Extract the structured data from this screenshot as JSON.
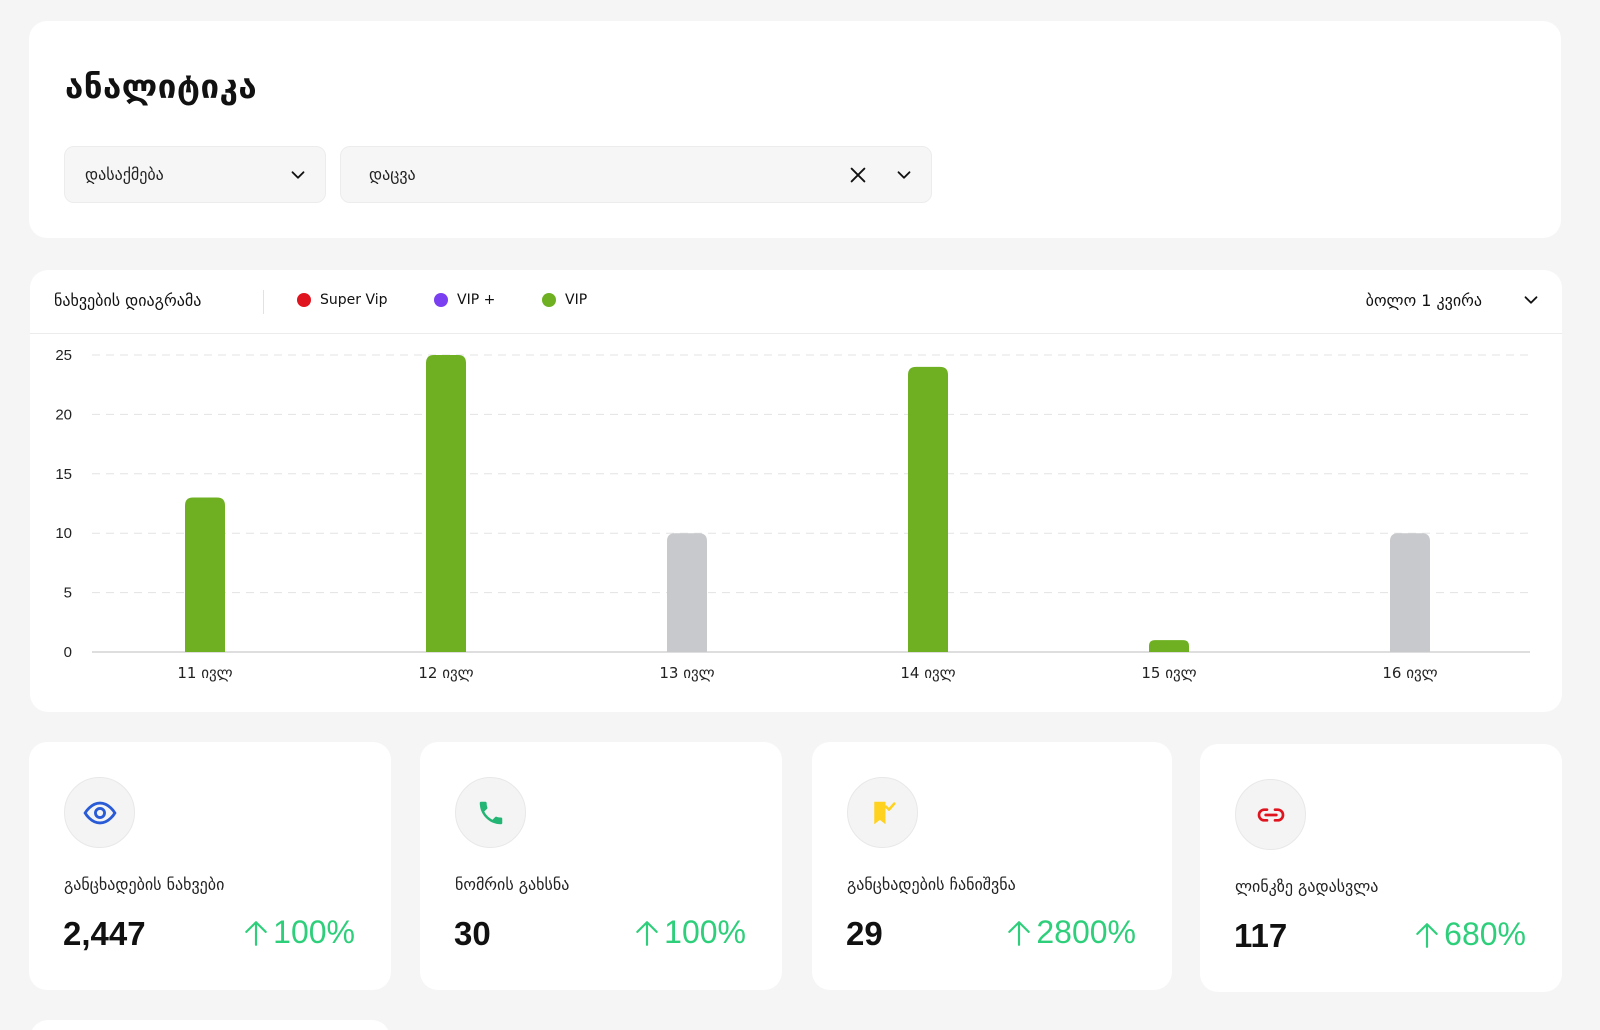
{
  "header": {
    "title": "ანალიტიკა",
    "category_select": {
      "value": "დასაქმება"
    },
    "subcategory_select": {
      "value": "დაცვა"
    }
  },
  "chart": {
    "title": "ნახვების დიაგრამა",
    "legend": [
      {
        "label": "Super Vip",
        "color": "#e0141e"
      },
      {
        "label": "VIP +",
        "color": "#7b3ff2"
      },
      {
        "label": "VIP",
        "color": "#6eb022"
      }
    ],
    "period": "ბოლო 1 კვირა"
  },
  "chart_data": {
    "type": "bar",
    "categories": [
      "11 ივლ",
      "12 ივლ",
      "13 ივლ",
      "14 ივლ",
      "15 ივლ",
      "16 ივლ"
    ],
    "values": [
      13,
      25,
      10,
      24,
      1,
      10
    ],
    "bar_colors": [
      "#6eb022",
      "#6eb022",
      "#c8c9cc",
      "#6eb022",
      "#6eb022",
      "#c8c9cc"
    ],
    "yticks": [
      0,
      5,
      10,
      15,
      20,
      25
    ],
    "ylim": [
      0,
      25
    ],
    "grid": true
  },
  "stats": [
    {
      "label": "განცხადების ნახვები",
      "value": "2,447",
      "change": "100%",
      "icon": "eye-icon",
      "icon_color": "#2a5bd7"
    },
    {
      "label": "ნომრის გახსნა",
      "value": "30",
      "change": "100%",
      "icon": "phone-icon",
      "icon_color": "#22b573"
    },
    {
      "label": "განცხადების ჩანიშვნა",
      "value": "29",
      "change": "2800%",
      "icon": "bookmark-icon",
      "icon_color": "#ffd21f"
    },
    {
      "label": "ლინკზე გადასვლა",
      "value": "117",
      "change": "680%",
      "icon": "link-icon",
      "icon_color": "#e0141e"
    }
  ],
  "colors": {
    "positive": "#2ecf7a"
  }
}
